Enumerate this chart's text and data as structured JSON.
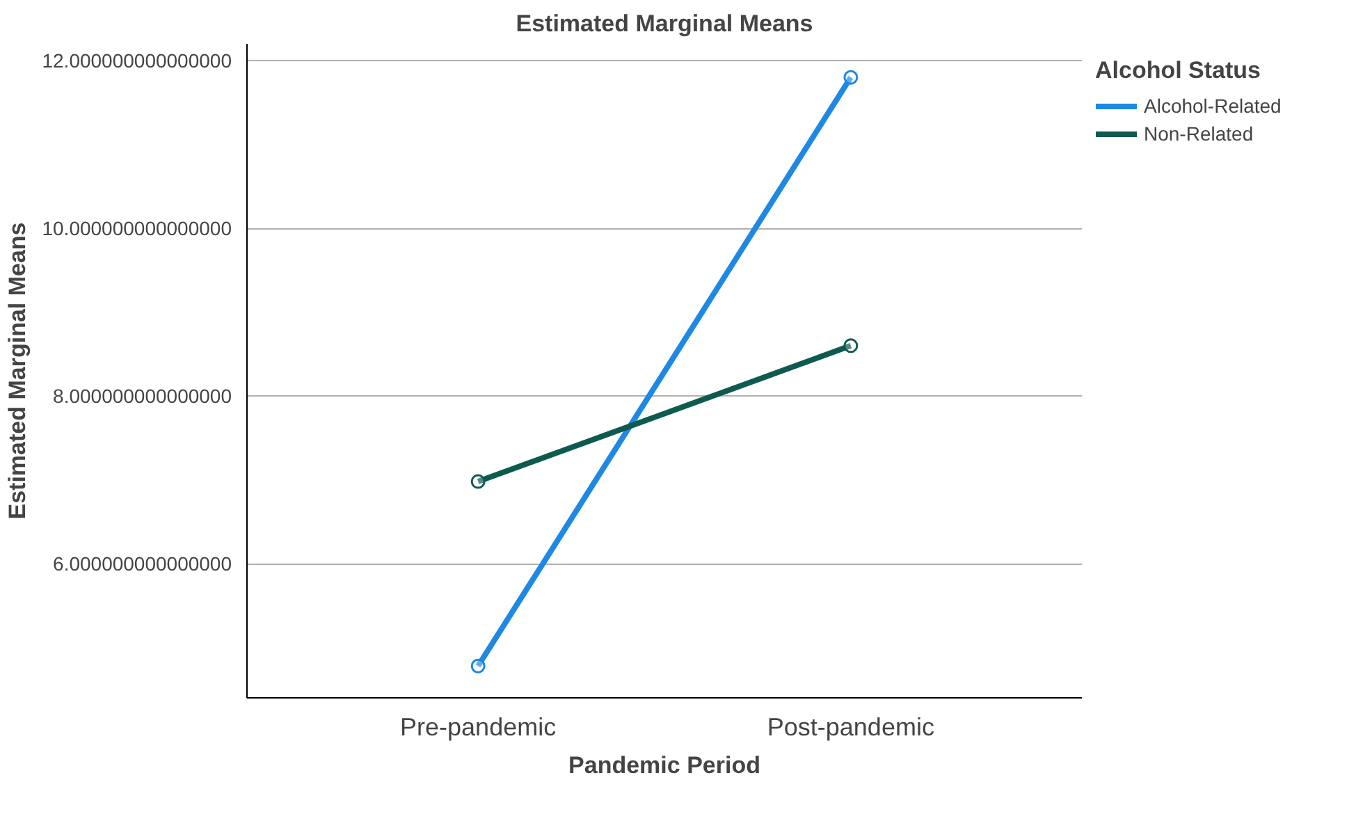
{
  "chart_data": {
    "type": "line",
    "title": "Estimated Marginal Means",
    "xlabel": "Pandemic Period",
    "ylabel": "Estimated Marginal Means",
    "legend_title": "Alcohol Status",
    "categories": [
      "Pre-pandemic",
      "Post-pandemic"
    ],
    "series": [
      {
        "name": "Alcohol-Related",
        "color": "#1e88e5",
        "values": [
          4.78,
          11.8
        ]
      },
      {
        "name": "Non-Related",
        "color": "#0f5a50",
        "values": [
          6.98,
          8.6
        ]
      }
    ],
    "ylim": [
      4.4,
      12.2
    ],
    "yticks": [
      {
        "value": 6,
        "label": "6.000000000000000"
      },
      {
        "value": 8,
        "label": "8.000000000000000"
      },
      {
        "value": 10,
        "label": "10.000000000000000"
      },
      {
        "value": 12,
        "label": "12.000000000000000"
      }
    ],
    "grid": "y",
    "legend": "top right",
    "marker": "circle",
    "line_style": "solid"
  }
}
